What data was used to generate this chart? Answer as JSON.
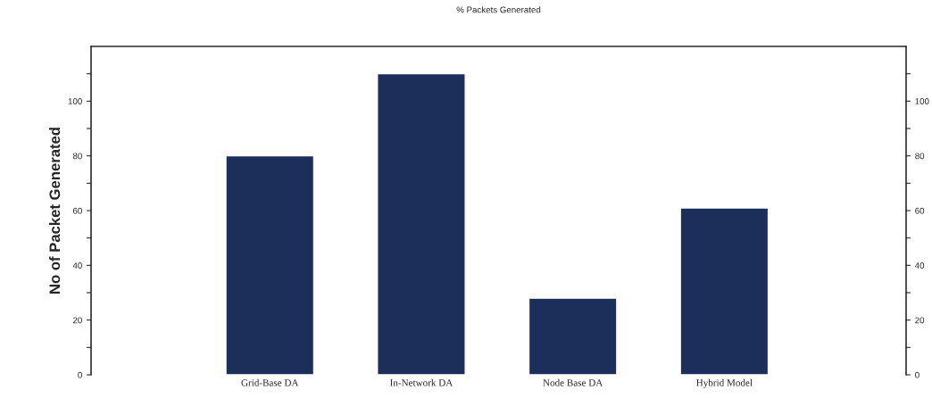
{
  "chart_data": {
    "type": "bar",
    "title": "% Packets Generated",
    "ylabel": "No of Packet Generated",
    "categories": [
      "Grid-Base DA",
      "In-Network DA",
      "Node Base DA",
      "Hybrid Model"
    ],
    "values": [
      80,
      110,
      28,
      61
    ],
    "color": "#1c2f5a",
    "ylim": [
      0,
      120
    ],
    "yticks": [
      0,
      {
        "value": 10,
        "label": null
      },
      20,
      {
        "value": 30,
        "label": null
      },
      40,
      {
        "value": 50,
        "label": null
      },
      60,
      {
        "value": 70,
        "label": null
      },
      80,
      {
        "value": 90,
        "label": null
      },
      100,
      {
        "value": 110,
        "label": null
      }
    ],
    "y2lim": [
      0,
      120
    ],
    "y2ticks": [
      0,
      {
        "value": 10,
        "label": null
      },
      20,
      {
        "value": 30,
        "label": null
      },
      40,
      {
        "value": 50,
        "label": null
      },
      60,
      {
        "value": 70,
        "label": null
      },
      80,
      {
        "value": 90,
        "label": null
      },
      100,
      {
        "value": 110,
        "label": null
      }
    ],
    "grid": false
  }
}
